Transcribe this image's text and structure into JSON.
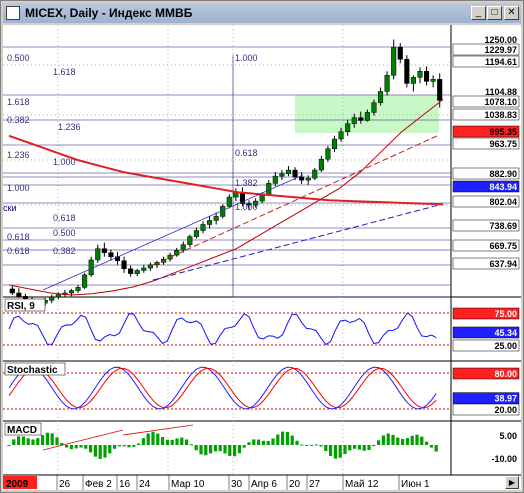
{
  "window": {
    "title": "MICEX, Daily - Индекс ММВБ",
    "buttons": {
      "minimize": "_",
      "maximize": "□",
      "close": "✕"
    }
  },
  "colors": {
    "main_price_bg": "#ffffff",
    "ema_red": "#e02020",
    "rsi_blue": "#1010ff",
    "stoch_red": "#ff0000",
    "macd_green": "#00a000",
    "candle_up": "#008000"
  },
  "price_panel": {
    "price_labels": [
      {
        "text": "1250.00",
        "boxed": false,
        "bg": ""
      },
      {
        "text": "1229.97",
        "boxed": true,
        "bg": "#ffffff"
      },
      {
        "text": "1194.61",
        "boxed": true,
        "bg": "#ffffff"
      },
      {
        "text": "1104.88",
        "boxed": false,
        "bg": ""
      },
      {
        "text": "1078.10",
        "boxed": true,
        "bg": "#ffffff"
      },
      {
        "text": "1038.83",
        "boxed": true,
        "bg": "#ffffff"
      },
      {
        "text": "995.35",
        "boxed": true,
        "bg": "#ff2020"
      },
      {
        "text": "963.75",
        "boxed": true,
        "bg": "#ffffff"
      },
      {
        "text": "882.90",
        "boxed": true,
        "bg": "#ffffff"
      },
      {
        "text": "843.94",
        "boxed": true,
        "bg": "#2020ff"
      },
      {
        "text": "802.04",
        "boxed": true,
        "bg": "#ffffff"
      },
      {
        "text": "738.69",
        "boxed": true,
        "bg": "#ffffff"
      },
      {
        "text": "669.75",
        "boxed": true,
        "bg": "#ffffff"
      },
      {
        "text": "637.94",
        "boxed": true,
        "bg": "#ffffff"
      }
    ],
    "fib_labels": [
      "0.500",
      "1.618",
      "1.000",
      "1.618",
      "0.382",
      "1.236",
      "1.236",
      "1.000",
      "0.618",
      "1.000",
      "1.382",
      "0.618",
      "1.000",
      "0.618",
      "0.500",
      "0.618",
      "0.382"
    ],
    "partial_text": "ски"
  },
  "rsi_panel": {
    "name": "RSI, 9",
    "levels": [
      "75.00",
      "45.34",
      "25.00"
    ]
  },
  "stoch_panel": {
    "name": "Stochastic",
    "levels": [
      "80.00",
      "38.97",
      "20.00"
    ]
  },
  "macd_panel": {
    "name": "MACD",
    "levels": [
      "5.00",
      "-10.00"
    ]
  },
  "date_axis": {
    "year_label": "2009",
    "labels": [
      "26",
      "Фев 2",
      "16",
      "24",
      "Мар 10",
      "30",
      "Апр 6",
      "20",
      "27",
      "Май 12",
      "Июн 1"
    ]
  },
  "chart_data": {
    "type": "candlestick",
    "symbol": "MICEX",
    "timeframe": "Daily",
    "ohlc": [
      [
        610,
        620,
        595,
        600
      ],
      [
        600,
        612,
        588,
        592
      ],
      [
        592,
        598,
        575,
        580
      ],
      [
        580,
        590,
        565,
        570
      ],
      [
        570,
        582,
        560,
        575
      ],
      [
        575,
        588,
        568,
        582
      ],
      [
        582,
        596,
        575,
        590
      ],
      [
        590,
        602,
        584,
        596
      ],
      [
        596,
        608,
        590,
        600
      ],
      [
        600,
        610,
        592,
        606
      ],
      [
        606,
        620,
        600,
        614
      ],
      [
        614,
        650,
        610,
        645
      ],
      [
        645,
        690,
        640,
        682
      ],
      [
        682,
        720,
        675,
        710
      ],
      [
        710,
        725,
        690,
        700
      ],
      [
        700,
        708,
        680,
        690
      ],
      [
        690,
        702,
        670,
        680
      ],
      [
        680,
        690,
        650,
        660
      ],
      [
        660,
        668,
        640,
        648
      ],
      [
        648,
        660,
        642,
        656
      ],
      [
        656,
        670,
        650,
        662
      ],
      [
        662,
        676,
        655,
        670
      ],
      [
        670,
        680,
        662,
        676
      ],
      [
        676,
        690,
        670,
        684
      ],
      [
        684,
        700,
        678,
        694
      ],
      [
        694,
        712,
        690,
        706
      ],
      [
        706,
        728,
        700,
        720
      ],
      [
        720,
        745,
        714,
        740
      ],
      [
        740,
        762,
        735,
        755
      ],
      [
        755,
        778,
        748,
        770
      ],
      [
        770,
        790,
        760,
        780
      ],
      [
        780,
        800,
        770,
        790
      ],
      [
        790,
        820,
        785,
        815
      ],
      [
        815,
        845,
        810,
        838
      ],
      [
        838,
        860,
        828,
        850
      ],
      [
        850,
        862,
        815,
        822
      ],
      [
        822,
        830,
        805,
        818
      ],
      [
        818,
        835,
        812,
        828
      ],
      [
        828,
        850,
        822,
        845
      ],
      [
        845,
        880,
        840,
        872
      ],
      [
        872,
        900,
        865,
        890
      ],
      [
        890,
        905,
        880,
        896
      ],
      [
        896,
        915,
        890,
        905
      ],
      [
        905,
        912,
        880,
        888
      ],
      [
        888,
        900,
        870,
        880
      ],
      [
        880,
        892,
        868,
        885
      ],
      [
        885,
        910,
        880,
        905
      ],
      [
        905,
        940,
        900,
        932
      ],
      [
        932,
        965,
        925,
        958
      ],
      [
        958,
        990,
        950,
        982
      ],
      [
        982,
        1010,
        975,
        1000
      ],
      [
        1000,
        1030,
        990,
        1020
      ],
      [
        1020,
        1045,
        1010,
        1035
      ],
      [
        1035,
        1050,
        1020,
        1028
      ],
      [
        1028,
        1055,
        1025,
        1048
      ],
      [
        1048,
        1080,
        1040,
        1072
      ],
      [
        1072,
        1110,
        1065,
        1100
      ],
      [
        1100,
        1150,
        1090,
        1140
      ],
      [
        1140,
        1229,
        1130,
        1210
      ],
      [
        1210,
        1220,
        1170,
        1180
      ],
      [
        1180,
        1190,
        1110,
        1120
      ],
      [
        1120,
        1140,
        1100,
        1135
      ],
      [
        1135,
        1160,
        1120,
        1150
      ],
      [
        1150,
        1162,
        1115,
        1125
      ],
      [
        1125,
        1140,
        1110,
        1130
      ],
      [
        1130,
        1145,
        1060,
        1078
      ]
    ],
    "ema_red": [
      990,
      970,
      950,
      930,
      915,
      900,
      890,
      880,
      870,
      860,
      850,
      845,
      840,
      835,
      830,
      828,
      826,
      824,
      822,
      820
    ],
    "ema_short": [
      620,
      610,
      600,
      595,
      598,
      605,
      615,
      630,
      650,
      670,
      690,
      710,
      740,
      770,
      800,
      830,
      860,
      900,
      950,
      1000,
      1040,
      1080
    ],
    "ylim": [
      600,
      1250
    ]
  }
}
